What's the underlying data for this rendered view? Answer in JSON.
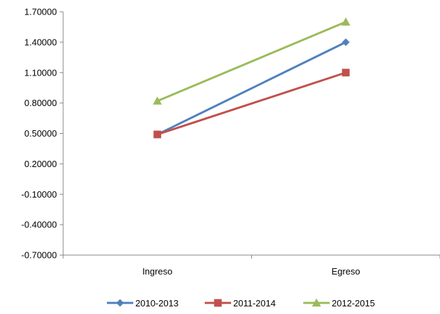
{
  "chart_data": {
    "type": "line",
    "title": "",
    "xlabel": "",
    "ylabel": "",
    "categories": [
      "Ingreso",
      "Egreso"
    ],
    "ylim": [
      -0.7,
      1.7
    ],
    "yticks": [
      "1.70000",
      "1.40000",
      "1.10000",
      "0.80000",
      "0.50000",
      "0.20000",
      "-0.10000",
      "-0.40000",
      "-0.70000"
    ],
    "grid": false,
    "legend_position": "bottom",
    "series": [
      {
        "name": "2010-2013",
        "values": [
          0.49,
          1.4
        ],
        "color": "#4F81BD",
        "marker": "diamond"
      },
      {
        "name": "2011-2014",
        "values": [
          0.49,
          1.1
        ],
        "color": "#C0504D",
        "marker": "square"
      },
      {
        "name": "2012-2015",
        "values": [
          0.82,
          1.6
        ],
        "color": "#9BBB59",
        "marker": "triangle"
      }
    ]
  }
}
